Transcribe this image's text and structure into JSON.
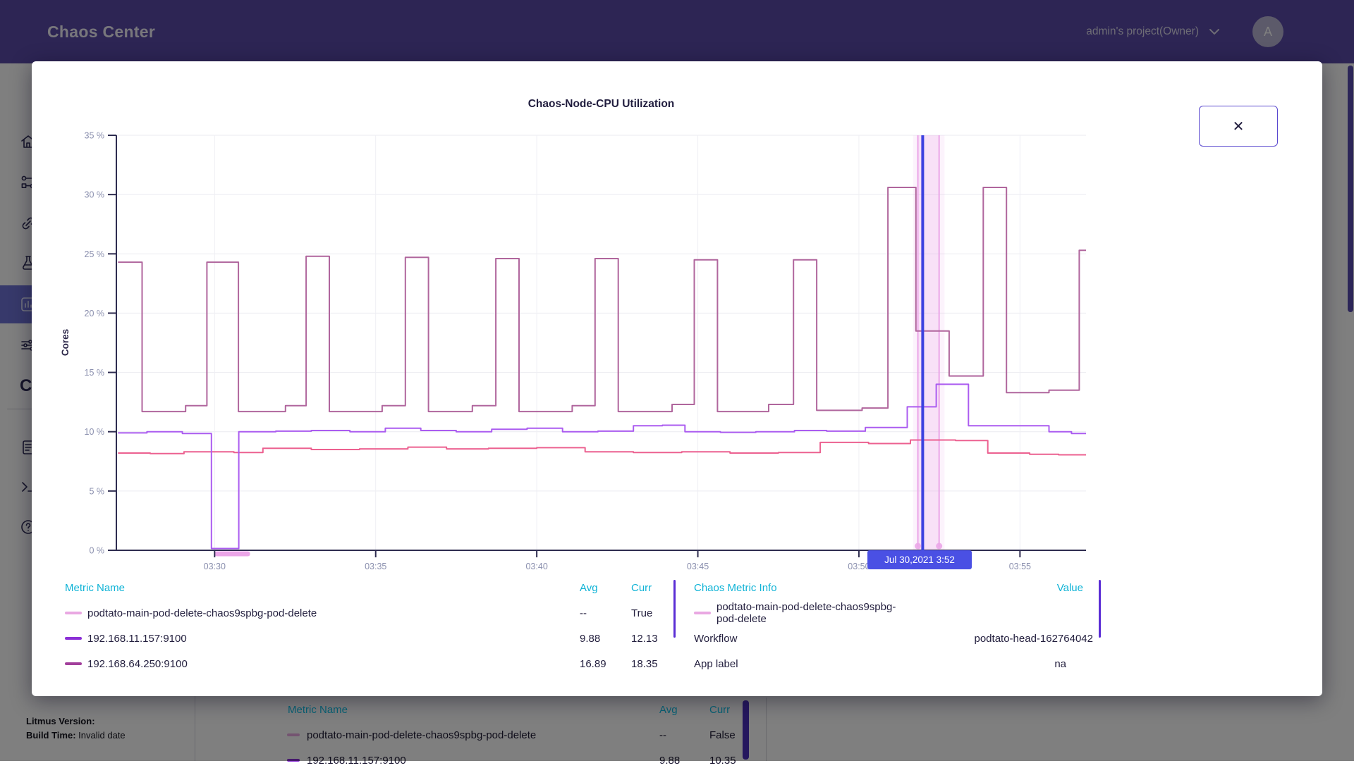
{
  "header": {
    "app_title": "Chaos Center",
    "project_label": "admin's project(Owner)",
    "avatar_letter": "A"
  },
  "sidebar": {
    "items": [
      "home",
      "workflows",
      "agents",
      "chaos-hubs",
      "analytics",
      "settings",
      "community",
      "docs",
      "cli",
      "support"
    ],
    "selected": "analytics",
    "partial_letter": "C"
  },
  "version_block": {
    "line1": "Litmus Version:",
    "line2_label": "Build Time:",
    "line2_value": "Invalid date"
  },
  "modal": {
    "close_label": "✕",
    "tooltip": "Jul 30,2021 3:52",
    "legend_left": {
      "headers": {
        "name": "Metric Name",
        "avg": "Avg",
        "curr": "Curr"
      },
      "rows": [
        {
          "dash": "#e9a8e2",
          "name": "podtato-main-pod-delete-chaos9spbg-pod-delete",
          "avg": "--",
          "curr": "True"
        },
        {
          "dash": "#8b2fd6",
          "name": "192.168.11.157:9100",
          "avg": "9.88",
          "curr": "12.13"
        },
        {
          "dash": "#a23f9b",
          "name": "192.168.64.250:9100",
          "avg": "16.89",
          "curr": "18.35"
        }
      ]
    },
    "legend_right": {
      "headers": {
        "info": "Chaos Metric Info",
        "value": "Value"
      },
      "rows": [
        {
          "dash": "#e9a8e2",
          "label": "podtato-main-pod-delete-chaos9spbg-pod-delete",
          "value": ""
        },
        {
          "label": "Workflow",
          "value": "podtato-head-162764042"
        },
        {
          "label": "App label",
          "value": "na"
        }
      ]
    }
  },
  "chart_data": {
    "type": "line",
    "title": "Chaos-Node-CPU Utilization",
    "ylabel": "Cores",
    "ylim": [
      0,
      35
    ],
    "xlim": [
      26.95,
      57.05
    ],
    "grid": true,
    "yticks": [
      {
        "v": 0,
        "label": "0 %"
      },
      {
        "v": 5,
        "label": "5 %"
      },
      {
        "v": 10,
        "label": "10 %"
      },
      {
        "v": 15,
        "label": "15 %"
      },
      {
        "v": 20,
        "label": "20 %"
      },
      {
        "v": 25,
        "label": "25 %"
      },
      {
        "v": 30,
        "label": "30 %"
      },
      {
        "v": 35,
        "label": "35 %"
      }
    ],
    "xticks": [
      {
        "t": 30,
        "label": "03:30"
      },
      {
        "t": 35,
        "label": "03:35"
      },
      {
        "t": 40,
        "label": "03:40"
      },
      {
        "t": 45,
        "label": "03:45"
      },
      {
        "t": 50,
        "label": "03:50"
      },
      {
        "t": 55,
        "label": "03:55"
      }
    ],
    "series": [
      {
        "name": "",
        "color": "#ec6190",
        "points": [
          [
            27,
            8.2
          ],
          [
            28,
            8.15
          ],
          [
            29.05,
            8.3
          ],
          [
            30.6,
            8.25
          ],
          [
            31.5,
            8.6
          ],
          [
            33,
            8.5
          ],
          [
            34.5,
            8.55
          ],
          [
            36,
            8.7
          ],
          [
            37.2,
            8.55
          ],
          [
            38.5,
            8.6
          ],
          [
            40,
            8.65
          ],
          [
            41.5,
            8.3
          ],
          [
            43,
            8.25
          ],
          [
            44.5,
            8.3
          ],
          [
            46,
            8.2
          ],
          [
            47.5,
            8.25
          ],
          [
            48.8,
            9.1
          ],
          [
            50.3,
            9
          ],
          [
            51.6,
            9.3
          ],
          [
            53,
            9.25
          ],
          [
            54,
            8.2
          ],
          [
            55.3,
            8.1
          ],
          [
            56.2,
            8.05
          ]
        ]
      },
      {
        "name": "192.168.11.157:9100",
        "color": "#ab5cf0",
        "points": [
          [
            27,
            9.9
          ],
          [
            27.9,
            10
          ],
          [
            29,
            9.85
          ],
          [
            29.9,
            0.15
          ],
          [
            30.75,
            10
          ],
          [
            31.9,
            10.05
          ],
          [
            33,
            10.1
          ],
          [
            34.2,
            10
          ],
          [
            35.3,
            10.3
          ],
          [
            36.4,
            10.1
          ],
          [
            37.5,
            10
          ],
          [
            38.6,
            10.2
          ],
          [
            39.7,
            10.3
          ],
          [
            40.8,
            10
          ],
          [
            41.9,
            10.05
          ],
          [
            43,
            10.5
          ],
          [
            43.9,
            10.55
          ],
          [
            44.6,
            10
          ],
          [
            45.7,
            9.95
          ],
          [
            46.8,
            10
          ],
          [
            48,
            10.1
          ],
          [
            49,
            10.05
          ],
          [
            50.2,
            10.35
          ],
          [
            51.5,
            12.1
          ],
          [
            52.4,
            14
          ],
          [
            53.4,
            10.5
          ],
          [
            55.9,
            10
          ],
          [
            56.6,
            9.85
          ]
        ]
      },
      {
        "name": "192.168.64.250:9100",
        "color": "#b0669d",
        "points": [
          [
            27,
            24.3
          ],
          [
            27.75,
            11.7
          ],
          [
            29.1,
            12.2
          ],
          [
            29.76,
            24.3
          ],
          [
            30.74,
            11.7
          ],
          [
            32.2,
            12.2
          ],
          [
            32.84,
            24.8
          ],
          [
            33.56,
            11.7
          ],
          [
            35.2,
            12.2
          ],
          [
            35.92,
            24.7
          ],
          [
            36.64,
            11.7
          ],
          [
            38,
            12.2
          ],
          [
            38.73,
            24.6
          ],
          [
            39.45,
            11.7
          ],
          [
            41.1,
            12.2
          ],
          [
            41.81,
            24.6
          ],
          [
            42.53,
            11.7
          ],
          [
            44.2,
            12.3
          ],
          [
            44.89,
            24.5
          ],
          [
            45.61,
            11.7
          ],
          [
            47.2,
            12.3
          ],
          [
            47.97,
            24.5
          ],
          [
            48.69,
            11.8
          ],
          [
            50.1,
            12
          ],
          [
            50.9,
            30.6
          ],
          [
            51.77,
            18.5
          ],
          [
            52.8,
            14.7
          ],
          [
            53.86,
            30.6
          ],
          [
            54.58,
            13.3
          ],
          [
            55.9,
            13.5
          ],
          [
            56.84,
            25.3
          ]
        ]
      }
    ],
    "chaos_event": {
      "band": [
        51.83,
        52.49
      ],
      "outer": [
        51.68,
        52.66
      ],
      "color": "#eba6e8",
      "axis_marker": [
        30.0,
        31.1
      ]
    },
    "cursor": {
      "t": 51.98,
      "color": "#3c42e0",
      "label": "Jul 30,2021 3:52"
    },
    "colors": {
      "grid": "#ebebf0",
      "axis": "#2e2c50",
      "tick_label": "#8a8fae",
      "ylabel": "#2a2547"
    }
  },
  "background_table": {
    "headers": {
      "name": "Metric Name",
      "avg": "Avg",
      "curr": "Curr"
    },
    "rows": [
      {
        "dash": "#e9a8e2",
        "name": "podtato-main-pod-delete-chaos9spbg-pod-delete",
        "avg": "--",
        "curr": "False"
      },
      {
        "dash": "#8b2fd6",
        "name": "192.168.11.157:9100",
        "avg": "9.88",
        "curr": "10.35"
      }
    ]
  }
}
